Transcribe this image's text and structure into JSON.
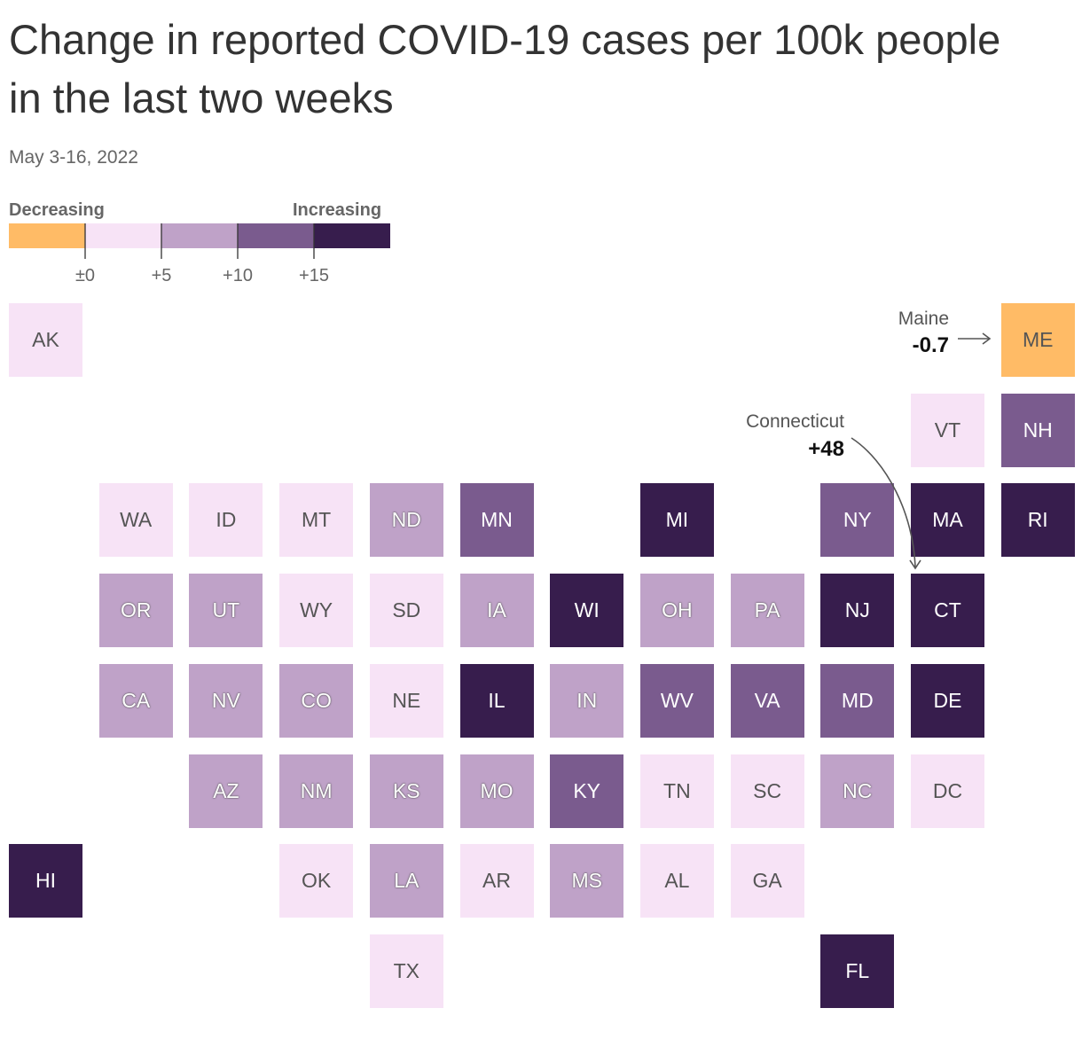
{
  "title": "Change in reported COVID-19 cases per 100k people in the last two weeks",
  "subtitle": "May 3-16, 2022",
  "legend": {
    "left_label": "Decreasing",
    "right_label": "Increasing",
    "ticks": [
      "±0",
      "+5",
      "+10",
      "+15"
    ],
    "bins": [
      {
        "color": "#ffbb66",
        "range": "< 0"
      },
      {
        "color": "#f7e3f6",
        "range": "0 to 5"
      },
      {
        "color": "#bfa2c8",
        "range": "5 to 10"
      },
      {
        "color": "#7a5b8e",
        "range": "10 to 15"
      },
      {
        "color": "#371d4d",
        "range": "> 15"
      }
    ]
  },
  "chart_data": {
    "type": "heatmap",
    "kind": "tile grid map",
    "legend_placement": "top-left",
    "states": [
      {
        "abbr": "AK",
        "col": 0,
        "row": 0,
        "bin": 1
      },
      {
        "abbr": "ME",
        "col": 11,
        "row": 0,
        "bin": 0
      },
      {
        "abbr": "VT",
        "col": 10,
        "row": 1,
        "bin": 1
      },
      {
        "abbr": "NH",
        "col": 11,
        "row": 1,
        "bin": 3
      },
      {
        "abbr": "WA",
        "col": 1,
        "row": 2,
        "bin": 1
      },
      {
        "abbr": "ID",
        "col": 2,
        "row": 2,
        "bin": 1
      },
      {
        "abbr": "MT",
        "col": 3,
        "row": 2,
        "bin": 1
      },
      {
        "abbr": "ND",
        "col": 4,
        "row": 2,
        "bin": 2
      },
      {
        "abbr": "MN",
        "col": 5,
        "row": 2,
        "bin": 3
      },
      {
        "abbr": "MI",
        "col": 7,
        "row": 2,
        "bin": 4
      },
      {
        "abbr": "NY",
        "col": 9,
        "row": 2,
        "bin": 3
      },
      {
        "abbr": "MA",
        "col": 10,
        "row": 2,
        "bin": 4
      },
      {
        "abbr": "RI",
        "col": 11,
        "row": 2,
        "bin": 4
      },
      {
        "abbr": "OR",
        "col": 1,
        "row": 3,
        "bin": 2
      },
      {
        "abbr": "UT",
        "col": 2,
        "row": 3,
        "bin": 2
      },
      {
        "abbr": "WY",
        "col": 3,
        "row": 3,
        "bin": 1
      },
      {
        "abbr": "SD",
        "col": 4,
        "row": 3,
        "bin": 1
      },
      {
        "abbr": "IA",
        "col": 5,
        "row": 3,
        "bin": 2
      },
      {
        "abbr": "WI",
        "col": 6,
        "row": 3,
        "bin": 4
      },
      {
        "abbr": "OH",
        "col": 7,
        "row": 3,
        "bin": 2
      },
      {
        "abbr": "PA",
        "col": 8,
        "row": 3,
        "bin": 2
      },
      {
        "abbr": "NJ",
        "col": 9,
        "row": 3,
        "bin": 4
      },
      {
        "abbr": "CT",
        "col": 10,
        "row": 3,
        "bin": 4
      },
      {
        "abbr": "CA",
        "col": 1,
        "row": 4,
        "bin": 2
      },
      {
        "abbr": "NV",
        "col": 2,
        "row": 4,
        "bin": 2
      },
      {
        "abbr": "CO",
        "col": 3,
        "row": 4,
        "bin": 2
      },
      {
        "abbr": "NE",
        "col": 4,
        "row": 4,
        "bin": 1
      },
      {
        "abbr": "IL",
        "col": 5,
        "row": 4,
        "bin": 4
      },
      {
        "abbr": "IN",
        "col": 6,
        "row": 4,
        "bin": 2
      },
      {
        "abbr": "WV",
        "col": 7,
        "row": 4,
        "bin": 3
      },
      {
        "abbr": "VA",
        "col": 8,
        "row": 4,
        "bin": 3
      },
      {
        "abbr": "MD",
        "col": 9,
        "row": 4,
        "bin": 3
      },
      {
        "abbr": "DE",
        "col": 10,
        "row": 4,
        "bin": 4
      },
      {
        "abbr": "AZ",
        "col": 2,
        "row": 5,
        "bin": 2
      },
      {
        "abbr": "NM",
        "col": 3,
        "row": 5,
        "bin": 2
      },
      {
        "abbr": "KS",
        "col": 4,
        "row": 5,
        "bin": 2
      },
      {
        "abbr": "MO",
        "col": 5,
        "row": 5,
        "bin": 2
      },
      {
        "abbr": "KY",
        "col": 6,
        "row": 5,
        "bin": 3
      },
      {
        "abbr": "TN",
        "col": 7,
        "row": 5,
        "bin": 1
      },
      {
        "abbr": "SC",
        "col": 8,
        "row": 5,
        "bin": 1
      },
      {
        "abbr": "NC",
        "col": 9,
        "row": 5,
        "bin": 2
      },
      {
        "abbr": "DC",
        "col": 10,
        "row": 5,
        "bin": 1
      },
      {
        "abbr": "HI",
        "col": 0,
        "row": 6,
        "bin": 4
      },
      {
        "abbr": "OK",
        "col": 3,
        "row": 6,
        "bin": 1
      },
      {
        "abbr": "LA",
        "col": 4,
        "row": 6,
        "bin": 2
      },
      {
        "abbr": "AR",
        "col": 5,
        "row": 6,
        "bin": 1
      },
      {
        "abbr": "MS",
        "col": 6,
        "row": 6,
        "bin": 2
      },
      {
        "abbr": "AL",
        "col": 7,
        "row": 6,
        "bin": 1
      },
      {
        "abbr": "GA",
        "col": 8,
        "row": 6,
        "bin": 1
      },
      {
        "abbr": "TX",
        "col": 4,
        "row": 7,
        "bin": 1
      },
      {
        "abbr": "FL",
        "col": 9,
        "row": 7,
        "bin": 4
      }
    ],
    "annotations": [
      {
        "state": "ME",
        "name": "Maine",
        "value": "-0.7"
      },
      {
        "state": "CT",
        "name": "Connecticut",
        "value": "+48"
      }
    ]
  }
}
